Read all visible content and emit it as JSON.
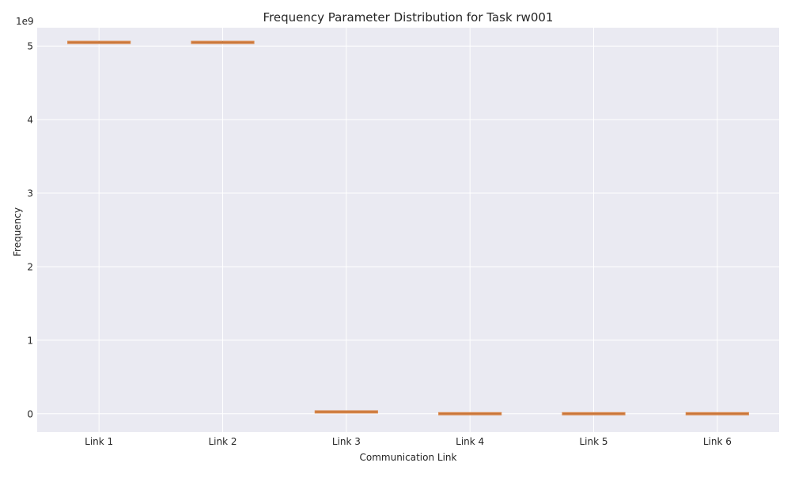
{
  "chart_data": {
    "type": "box",
    "title": "Frequency Parameter Distribution for Task rw001",
    "xlabel": "Communication Link",
    "ylabel": "Frequency",
    "y_offset_label": "1e9",
    "y_scale": 1000000000.0,
    "ylim": [
      -0.25,
      5.25
    ],
    "yticks": [
      0,
      1,
      2,
      3,
      4,
      5
    ],
    "categories": [
      "Link 1",
      "Link 2",
      "Link 3",
      "Link 4",
      "Link 5",
      "Link 6"
    ],
    "boxes": [
      {
        "category": "Link 1",
        "q1": 5.04,
        "median": 5.05,
        "q3": 5.06,
        "whisker_low": 5.04,
        "whisker_high": 5.06
      },
      {
        "category": "Link 2",
        "q1": 5.04,
        "median": 5.05,
        "q3": 5.06,
        "whisker_low": 5.04,
        "whisker_high": 5.06
      },
      {
        "category": "Link 3",
        "q1": 0.02,
        "median": 0.025,
        "q3": 0.03,
        "whisker_low": 0.02,
        "whisker_high": 0.03
      },
      {
        "category": "Link 4",
        "q1": -0.005,
        "median": 0.0,
        "q3": 0.005,
        "whisker_low": -0.005,
        "whisker_high": 0.005
      },
      {
        "category": "Link 5",
        "q1": -0.005,
        "median": 0.0,
        "q3": 0.005,
        "whisker_low": -0.005,
        "whisker_high": 0.005
      },
      {
        "category": "Link 6",
        "q1": -0.005,
        "median": 0.0,
        "q3": 0.005,
        "whisker_low": -0.005,
        "whisker_high": 0.005
      }
    ],
    "grid": true,
    "colors": {
      "plot_background": "#eaeaf2",
      "grid": "#ffffff",
      "box_edge": "#d9894d",
      "median": "#c8753a",
      "text": "#262626"
    }
  }
}
